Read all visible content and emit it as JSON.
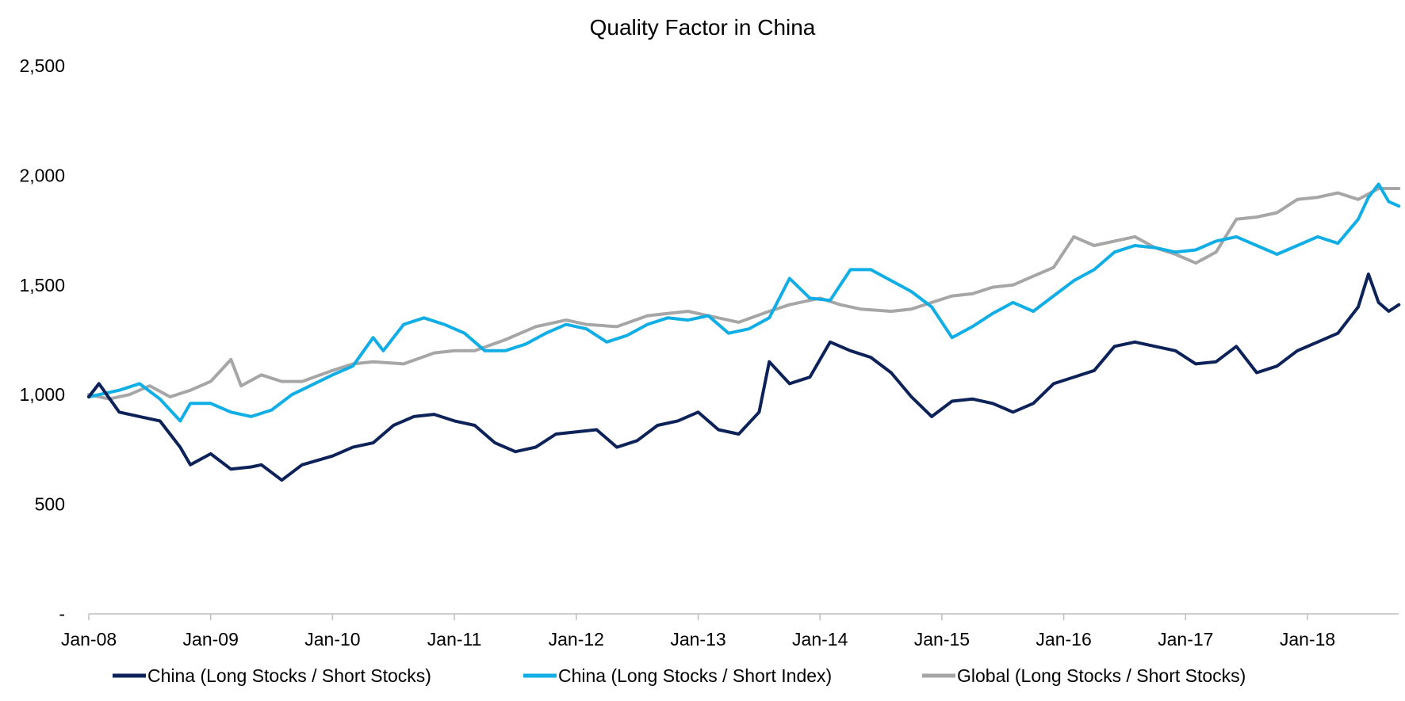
{
  "chart_data": {
    "type": "line",
    "title": "Quality Factor in China",
    "xlabel": "",
    "ylabel": "",
    "ylim": [
      0,
      2500
    ],
    "xlim": [
      "2008-01",
      "2018-10"
    ],
    "y_ticks": [
      0,
      500,
      1000,
      1500,
      2000,
      2500
    ],
    "y_tick_labels": [
      "-",
      "500",
      "1,000",
      "1,500",
      "2,000",
      "2,500"
    ],
    "x_ticks": [
      "2008-01",
      "2009-01",
      "2010-01",
      "2011-01",
      "2012-01",
      "2013-01",
      "2014-01",
      "2015-01",
      "2016-01",
      "2017-01",
      "2018-01"
    ],
    "x_tick_labels": [
      "Jan-08",
      "Jan-09",
      "Jan-10",
      "Jan-11",
      "Jan-12",
      "Jan-13",
      "Jan-14",
      "Jan-15",
      "Jan-16",
      "Jan-17",
      "Jan-18"
    ],
    "grid": false,
    "legend_position": "bottom",
    "series": [
      {
        "name": "China (Long Stocks / Short Stocks)",
        "color": "#0c2259",
        "x": [
          "2008-01",
          "2008-02",
          "2008-04",
          "2008-06",
          "2008-08",
          "2008-10",
          "2008-11",
          "2009-01",
          "2009-03",
          "2009-05",
          "2009-06",
          "2009-08",
          "2009-10",
          "2010-01",
          "2010-03",
          "2010-05",
          "2010-07",
          "2010-09",
          "2010-11",
          "2011-01",
          "2011-03",
          "2011-05",
          "2011-07",
          "2011-09",
          "2011-11",
          "2012-01",
          "2012-03",
          "2012-05",
          "2012-07",
          "2012-09",
          "2012-11",
          "2013-01",
          "2013-03",
          "2013-05",
          "2013-07",
          "2013-08",
          "2013-10",
          "2013-12",
          "2014-02",
          "2014-04",
          "2014-06",
          "2014-08",
          "2014-10",
          "2014-12",
          "2015-02",
          "2015-04",
          "2015-06",
          "2015-08",
          "2015-10",
          "2015-12",
          "2016-02",
          "2016-04",
          "2016-06",
          "2016-08",
          "2016-10",
          "2016-12",
          "2017-02",
          "2017-04",
          "2017-06",
          "2017-08",
          "2017-10",
          "2017-12",
          "2018-02",
          "2018-04",
          "2018-06",
          "2018-07",
          "2018-08",
          "2018-09",
          "2018-10"
        ],
        "values": [
          990,
          1050,
          920,
          900,
          880,
          760,
          680,
          730,
          660,
          670,
          680,
          610,
          680,
          720,
          760,
          780,
          860,
          900,
          910,
          880,
          860,
          780,
          740,
          760,
          820,
          830,
          840,
          760,
          790,
          860,
          880,
          920,
          840,
          820,
          920,
          1150,
          1050,
          1080,
          1240,
          1200,
          1170,
          1100,
          990,
          900,
          970,
          980,
          960,
          920,
          960,
          1050,
          1080,
          1110,
          1220,
          1240,
          1220,
          1200,
          1140,
          1150,
          1220,
          1100,
          1130,
          1200,
          1240,
          1280,
          1400,
          1550,
          1420,
          1380,
          1410
        ]
      },
      {
        "name": "China (Long Stocks / Short Index)",
        "color": "#10aee5",
        "x": [
          "2008-01",
          "2008-02",
          "2008-04",
          "2008-06",
          "2008-08",
          "2008-10",
          "2008-11",
          "2009-01",
          "2009-03",
          "2009-05",
          "2009-07",
          "2009-09",
          "2010-01",
          "2010-03",
          "2010-05",
          "2010-06",
          "2010-08",
          "2010-10",
          "2010-12",
          "2011-02",
          "2011-04",
          "2011-06",
          "2011-08",
          "2011-10",
          "2011-12",
          "2012-02",
          "2012-04",
          "2012-06",
          "2012-08",
          "2012-10",
          "2012-12",
          "2013-02",
          "2013-04",
          "2013-06",
          "2013-08",
          "2013-10",
          "2013-12",
          "2014-02",
          "2014-04",
          "2014-06",
          "2014-08",
          "2014-10",
          "2014-12",
          "2015-02",
          "2015-04",
          "2015-06",
          "2015-08",
          "2015-10",
          "2015-12",
          "2016-02",
          "2016-04",
          "2016-06",
          "2016-08",
          "2016-10",
          "2016-12",
          "2017-02",
          "2017-04",
          "2017-06",
          "2017-08",
          "2017-10",
          "2017-12",
          "2018-02",
          "2018-04",
          "2018-06",
          "2018-07",
          "2018-08",
          "2018-09",
          "2018-10"
        ],
        "values": [
          990,
          1000,
          1020,
          1050,
          980,
          880,
          960,
          960,
          920,
          900,
          930,
          1000,
          1090,
          1130,
          1260,
          1200,
          1320,
          1350,
          1320,
          1280,
          1200,
          1200,
          1230,
          1280,
          1320,
          1300,
          1240,
          1270,
          1320,
          1350,
          1340,
          1360,
          1280,
          1300,
          1350,
          1530,
          1440,
          1430,
          1570,
          1570,
          1520,
          1470,
          1400,
          1260,
          1310,
          1370,
          1420,
          1380,
          1450,
          1520,
          1570,
          1650,
          1680,
          1670,
          1650,
          1660,
          1700,
          1720,
          1680,
          1640,
          1680,
          1720,
          1690,
          1800,
          1900,
          1960,
          1880,
          1860
        ]
      },
      {
        "name": "Global (Long Stocks / Short Stocks)",
        "color": "#a6a6a6",
        "x": [
          "2008-01",
          "2008-03",
          "2008-05",
          "2008-07",
          "2008-09",
          "2008-11",
          "2009-01",
          "2009-03",
          "2009-04",
          "2009-06",
          "2009-08",
          "2009-10",
          "2010-01",
          "2010-03",
          "2010-05",
          "2010-08",
          "2010-11",
          "2011-01",
          "2011-03",
          "2011-06",
          "2011-09",
          "2011-12",
          "2012-02",
          "2012-05",
          "2012-08",
          "2012-10",
          "2012-12",
          "2013-02",
          "2013-05",
          "2013-08",
          "2013-10",
          "2014-01",
          "2014-03",
          "2014-05",
          "2014-08",
          "2014-10",
          "2014-12",
          "2015-02",
          "2015-04",
          "2015-06",
          "2015-08",
          "2015-10",
          "2015-12",
          "2016-02",
          "2016-04",
          "2016-06",
          "2016-08",
          "2016-10",
          "2016-12",
          "2017-02",
          "2017-04",
          "2017-06",
          "2017-08",
          "2017-10",
          "2017-12",
          "2018-02",
          "2018-04",
          "2018-06",
          "2018-08",
          "2018-10"
        ],
        "values": [
          1000,
          980,
          1000,
          1040,
          990,
          1020,
          1060,
          1160,
          1040,
          1090,
          1060,
          1060,
          1110,
          1140,
          1150,
          1140,
          1190,
          1200,
          1200,
          1250,
          1310,
          1340,
          1320,
          1310,
          1360,
          1370,
          1380,
          1360,
          1330,
          1380,
          1410,
          1440,
          1410,
          1390,
          1380,
          1390,
          1420,
          1450,
          1460,
          1490,
          1500,
          1540,
          1580,
          1720,
          1680,
          1700,
          1720,
          1670,
          1640,
          1600,
          1650,
          1800,
          1810,
          1830,
          1890,
          1900,
          1920,
          1890,
          1940,
          1940
        ]
      }
    ]
  }
}
